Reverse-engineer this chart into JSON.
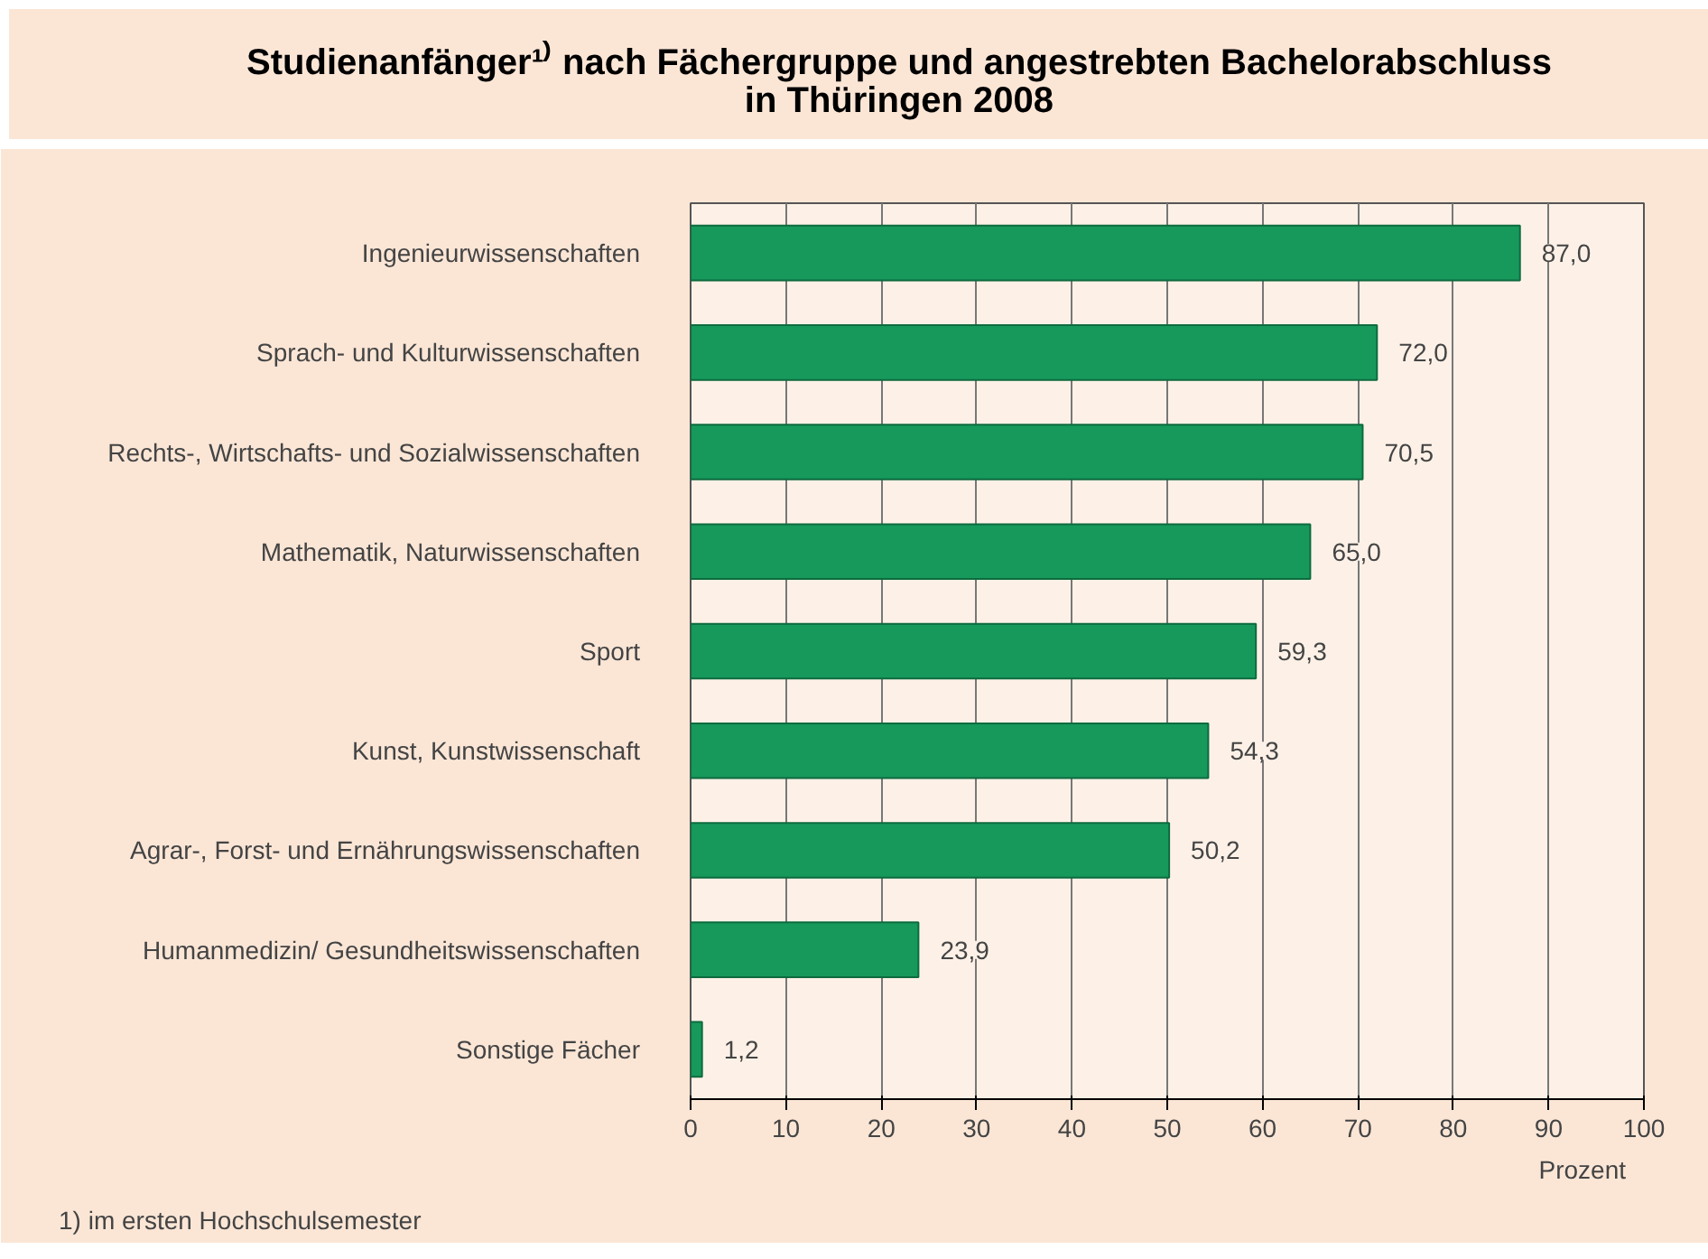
{
  "chart_data": {
    "type": "bar",
    "orientation": "horizontal",
    "title": "Studienanfänger¹⁾ nach Fächergruppe und angestrebten Bachelorabschluss\nin Thüringen 2008",
    "categories": [
      "Ingenieurwissenschaften",
      "Sprach- und Kulturwissenschaften",
      "Rechts-, Wirtschafts- und Sozialwissenschaften",
      "Mathematik, Naturwissenschaften",
      "Sport",
      "Kunst, Kunstwissenschaft",
      "Agrar-, Forst- und Ernährungswissenschaften",
      "Humanmedizin/ Gesundheitswissenschaften",
      "Sonstige Fächer"
    ],
    "values": [
      87.0,
      72.0,
      70.5,
      65.0,
      59.3,
      54.3,
      50.2,
      23.9,
      1.2
    ],
    "value_labels": [
      "87,0",
      "72,0",
      "70,5",
      "65,0",
      "59,3",
      "54,3",
      "50,2",
      "23,9",
      "1,2"
    ],
    "color": "#17995c",
    "xlabel": "Prozent",
    "xlim": [
      0,
      100
    ],
    "xticks": [
      0,
      10,
      20,
      30,
      40,
      50,
      60,
      70,
      80,
      90,
      100
    ],
    "grid": "x",
    "annotations": [
      "1) im ersten Hochschulsemester"
    ]
  }
}
